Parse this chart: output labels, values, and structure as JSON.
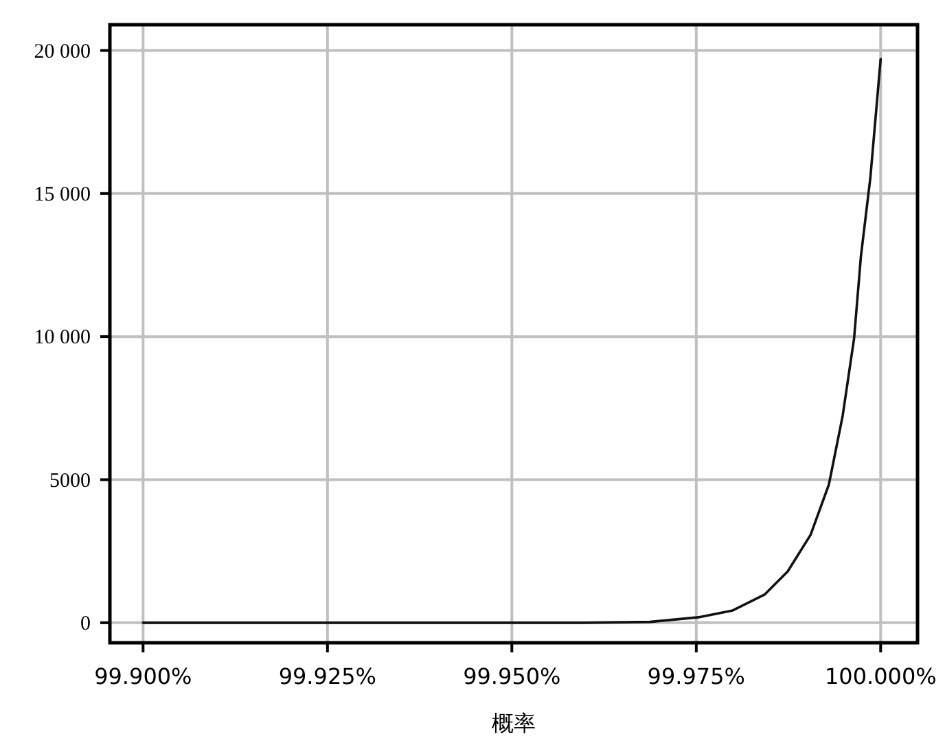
{
  "chart_data": {
    "type": "line",
    "xlabel": "概率",
    "x": [
      99.9,
      99.925,
      99.95,
      99.96,
      99.96872,
      99.97529,
      99.97995,
      99.9843,
      99.98739,
      99.9905,
      99.99298,
      99.99485,
      99.9964,
      99.99733,
      99.9986,
      100.0
    ],
    "series": [
      {
        "color": "#111111",
        "values": [
          0,
          0,
          0,
          0,
          30,
          190,
          430,
          990,
          1790,
          3070,
          4830,
          7230,
          9940,
          12820,
          15540,
          19700
        ]
      }
    ],
    "xlim": [
      99.8955,
      100.005
    ],
    "ylim": [
      -700,
      20900
    ],
    "xticks": [
      {
        "value": 99.9,
        "label": "99.900%"
      },
      {
        "value": 99.925,
        "label": "99.925%"
      },
      {
        "value": 99.95,
        "label": "99.950%"
      },
      {
        "value": 99.975,
        "label": "99.975%"
      },
      {
        "value": 100.0,
        "label": "100.000%"
      }
    ],
    "yticks": [
      0,
      5000,
      {
        "value": 10000,
        "label": "10 000"
      },
      {
        "value": 15000,
        "label": "15 000"
      },
      {
        "value": 20000,
        "label": "20 000"
      }
    ],
    "grid": true,
    "marker": "none",
    "line_style": "solid"
  }
}
